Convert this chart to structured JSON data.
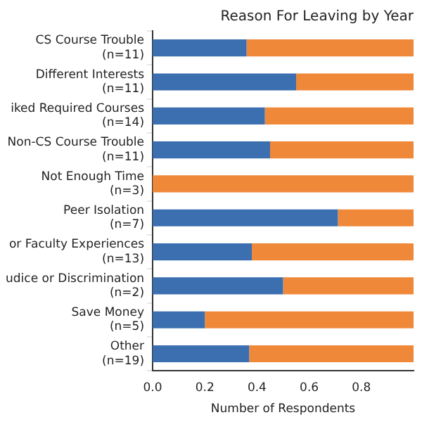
{
  "chart_data": {
    "type": "bar",
    "orientation": "horizontal",
    "stacked": true,
    "title": "Reason For Leaving by Year",
    "xlabel": "Number of Respondents",
    "categories": [
      "CS Course Trouble\n(n=11)",
      "Different Interests\n(n=11)",
      "iked Required Courses\n(n=14)",
      "Non-CS Course Trouble\n(n=11)",
      "Not Enough Time\n(n=3)",
      "Peer Isolation\n(n=7)",
      "or Faculty Experiences\n(n=13)",
      "udice or Discrimination\n(n=2)",
      "Save Money\n(n=5)",
      "Other\n(n=19)"
    ],
    "series": [
      {
        "color": "#3b6fb0",
        "values": [
          0.36,
          0.55,
          0.43,
          0.45,
          0,
          0.71,
          0.38,
          0.5,
          0.2,
          0.37
        ]
      },
      {
        "color": "#f0883a",
        "values": [
          0.64,
          0.45,
          0.57,
          0.55,
          1,
          0.29,
          0.62,
          0.5,
          0.8,
          0.63
        ]
      }
    ],
    "xlim": [
      0,
      1
    ],
    "xticks": [
      {
        "value": 0,
        "label": "0.0"
      },
      0.2,
      0.4,
      0.6,
      0.8
    ],
    "grid": false,
    "legend": false
  }
}
